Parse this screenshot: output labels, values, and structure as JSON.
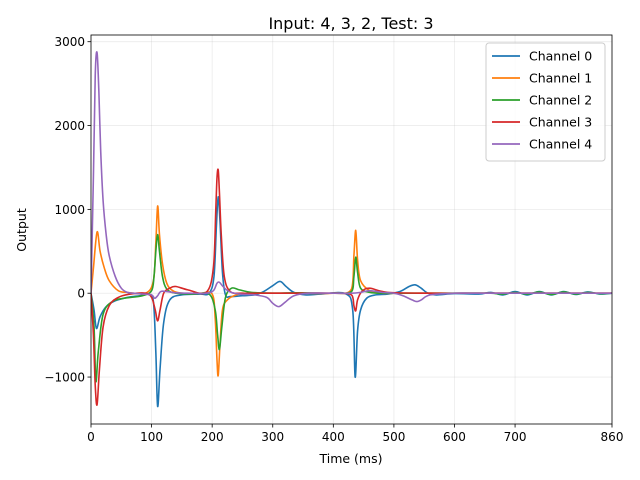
{
  "chart_data": {
    "type": "line",
    "title": "Input: 4, 3, 2, Test: 3",
    "xlabel": "Time (ms)",
    "ylabel": "Output",
    "xlim": [
      0,
      860
    ],
    "ylim": [
      -1560,
      3080
    ],
    "xticks": [
      0,
      100,
      200,
      300,
      400,
      500,
      600,
      700,
      860
    ],
    "yticks": [
      -1000,
      0,
      1000,
      2000,
      3000
    ],
    "xtick_labels": [
      "0",
      "100",
      "200",
      "300",
      "400",
      "500",
      "600",
      "700",
      "860"
    ],
    "ytick_labels": [
      "−1000",
      "0",
      "1000",
      "2000",
      "3000"
    ],
    "grid": true,
    "legend_position": "top-right",
    "colors": [
      "#1f77b4",
      "#ff7f0e",
      "#2ca02c",
      "#d62728",
      "#9467bd"
    ],
    "series": [
      {
        "name": "Channel 0",
        "x": [
          0,
          5,
          9,
          15,
          25,
          40,
          60,
          80,
          95,
          103,
          107,
          110,
          114,
          120,
          130,
          150,
          180,
          195,
          203,
          207,
          210,
          213,
          217,
          222,
          230,
          250,
          270,
          285,
          300,
          312,
          322,
          335,
          355,
          380,
          420,
          432,
          436,
          440,
          445,
          455,
          470,
          490,
          510,
          525,
          535,
          545,
          555,
          570,
          600,
          640,
          660,
          680,
          700,
          720,
          740,
          760,
          780,
          800,
          820,
          840,
          860
        ],
        "values": [
          0,
          -200,
          -420,
          -280,
          -160,
          -90,
          -50,
          -30,
          -15,
          -100,
          -700,
          -1350,
          -900,
          -350,
          -80,
          -20,
          -10,
          0,
          200,
          800,
          1150,
          850,
          250,
          -20,
          -40,
          -30,
          -20,
          20,
          90,
          140,
          80,
          10,
          -20,
          -10,
          -5,
          -200,
          -1000,
          -450,
          -200,
          -60,
          -20,
          -10,
          20,
          80,
          100,
          60,
          5,
          -20,
          -5,
          -10,
          10,
          -20,
          20,
          -20,
          20,
          -20,
          20,
          -15,
          15,
          -10,
          0
        ]
      },
      {
        "name": "Channel 1",
        "x": [
          0,
          4,
          10,
          15,
          22,
          30,
          45,
          60,
          90,
          103,
          107,
          110,
          113,
          118,
          125,
          135,
          150,
          180,
          200,
          205,
          208,
          210,
          213,
          217,
          225,
          240,
          260,
          300,
          340,
          400,
          430,
          434,
          437,
          440,
          445,
          460,
          480,
          520,
          560,
          600,
          640,
          680,
          720,
          760,
          800,
          840,
          860
        ],
        "values": [
          0,
          300,
          730,
          500,
          300,
          150,
          30,
          10,
          0,
          150,
          600,
          1040,
          700,
          350,
          120,
          30,
          0,
          0,
          -10,
          -300,
          -800,
          -980,
          -600,
          -200,
          -80,
          -20,
          0,
          0,
          0,
          0,
          50,
          450,
          750,
          400,
          150,
          30,
          0,
          0,
          0,
          0,
          0,
          0,
          0,
          0,
          0,
          0,
          0
        ]
      },
      {
        "name": "Channel 2",
        "x": [
          0,
          5,
          8,
          12,
          20,
          35,
          55,
          85,
          100,
          104,
          107,
          110,
          113,
          118,
          125,
          140,
          170,
          195,
          205,
          209,
          212,
          216,
          222,
          232,
          245,
          265,
          300,
          340,
          400,
          430,
          434,
          437,
          440,
          445,
          460,
          480,
          520,
          560,
          600,
          630,
          660,
          680,
          700,
          720,
          740,
          760,
          780,
          800,
          820,
          840,
          860
        ],
        "values": [
          0,
          -400,
          -1050,
          -700,
          -250,
          -100,
          -60,
          -30,
          30,
          200,
          500,
          700,
          500,
          200,
          50,
          0,
          -10,
          -10,
          -200,
          -500,
          -670,
          -400,
          -50,
          60,
          40,
          10,
          0,
          5,
          0,
          20,
          200,
          430,
          250,
          60,
          10,
          0,
          0,
          0,
          0,
          0,
          0,
          -10,
          10,
          -10,
          15,
          -15,
          15,
          -10,
          10,
          -5,
          0
        ]
      },
      {
        "name": "Channel 3",
        "x": [
          0,
          4,
          7,
          10,
          14,
          20,
          30,
          45,
          65,
          90,
          100,
          106,
          110,
          114,
          120,
          130,
          140,
          160,
          190,
          202,
          206,
          208,
          210,
          212,
          215,
          220,
          230,
          250,
          280,
          320,
          400,
          430,
          434,
          437,
          440,
          447,
          460,
          490,
          560,
          620,
          680,
          720,
          760,
          800,
          840,
          860
        ],
        "values": [
          0,
          -500,
          -1100,
          -1330,
          -900,
          -400,
          -150,
          -50,
          -10,
          0,
          -50,
          -200,
          -330,
          -200,
          0,
          60,
          80,
          40,
          10,
          300,
          1000,
          1380,
          1470,
          1200,
          700,
          200,
          20,
          0,
          0,
          0,
          0,
          -20,
          -150,
          -210,
          -80,
          20,
          60,
          10,
          0,
          0,
          0,
          0,
          0,
          0,
          0,
          0
        ]
      },
      {
        "name": "Channel 4",
        "x": [
          0,
          4,
          7,
          10,
          13,
          16,
          20,
          25,
          30,
          40,
          50,
          60,
          70,
          85,
          100,
          105,
          110,
          115,
          125,
          140,
          160,
          190,
          202,
          208,
          212,
          218,
          228,
          245,
          270,
          290,
          300,
          310,
          320,
          335,
          360,
          400,
          430,
          445,
          460,
          480,
          500,
          515,
          530,
          538,
          545,
          560,
          600,
          640,
          700,
          760,
          820,
          860
        ],
        "values": [
          0,
          1400,
          2600,
          2870,
          2400,
          1700,
          1100,
          700,
          450,
          200,
          60,
          10,
          0,
          -10,
          -20,
          -60,
          -30,
          20,
          20,
          5,
          0,
          0,
          30,
          120,
          130,
          80,
          20,
          -10,
          -20,
          -50,
          -120,
          -160,
          -110,
          -30,
          0,
          0,
          0,
          10,
          30,
          10,
          0,
          -30,
          -80,
          -100,
          -80,
          -20,
          0,
          0,
          0,
          0,
          0,
          0
        ]
      }
    ]
  }
}
